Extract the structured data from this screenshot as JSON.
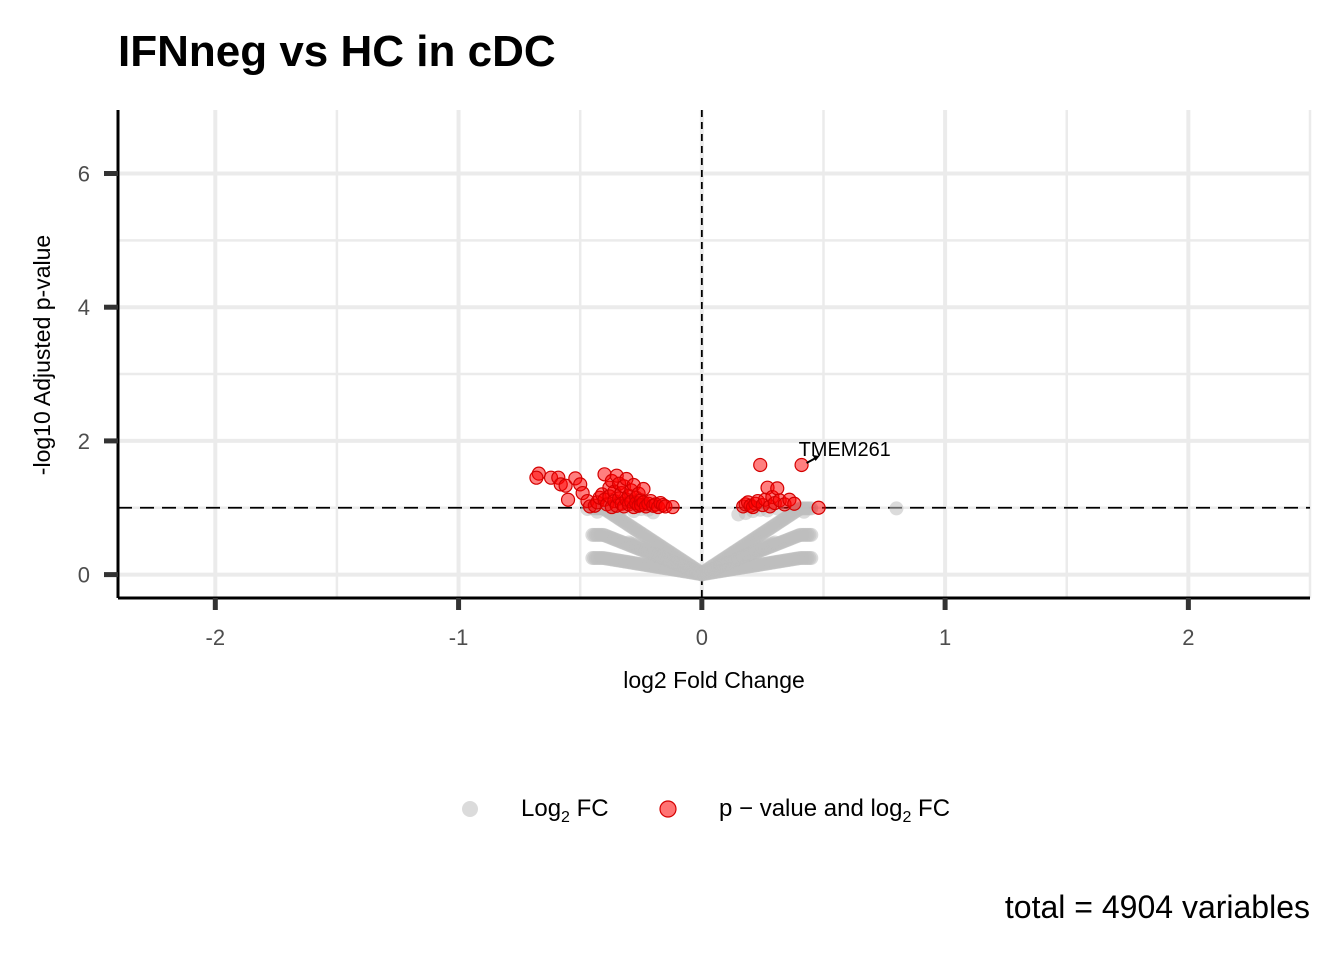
{
  "chart_data": {
    "type": "scatter",
    "title": "IFNneg vs HC in cDC",
    "xlabel": "log2 Fold Change",
    "ylabel": "-log10 Adjusted p-value",
    "xlim": [
      -2.4,
      2.5
    ],
    "ylim": [
      -0.35,
      6.95
    ],
    "x_ticks": [
      -2,
      -1,
      0,
      1,
      2
    ],
    "x_tick_labels": [
      "-2",
      "-1",
      "0",
      "1",
      "2"
    ],
    "y_ticks": [
      0,
      2,
      4,
      6
    ],
    "y_tick_labels": [
      "0",
      "2",
      "4",
      "6"
    ],
    "grid": true,
    "thresholds": {
      "log2fc": 0,
      "neg_log10_padj": 1
    },
    "legend": {
      "position": "bottom",
      "items": [
        {
          "label_main": "Log",
          "label_sub": "2",
          "label_tail": " FC",
          "color": "#bdbdbd"
        },
        {
          "label_main": "p − value and log",
          "label_sub": "2",
          "label_tail": " FC",
          "color": "#ff0000"
        }
      ]
    },
    "caption": "total = 4904 variables",
    "annotations": [
      {
        "text": "TMEM261",
        "x": 0.41,
        "y": 1.64
      }
    ],
    "series": [
      {
        "name": "p − value and log2 FC",
        "color": "#ff0000",
        "points": [
          [
            -0.67,
            1.51
          ],
          [
            -0.68,
            1.45
          ],
          [
            -0.62,
            1.45
          ],
          [
            -0.59,
            1.45
          ],
          [
            -0.58,
            1.35
          ],
          [
            -0.56,
            1.33
          ],
          [
            -0.55,
            1.12
          ],
          [
            -0.52,
            1.44
          ],
          [
            -0.5,
            1.35
          ],
          [
            -0.49,
            1.22
          ],
          [
            -0.47,
            1.1
          ],
          [
            -0.46,
            1.02
          ],
          [
            -0.44,
            1.03
          ],
          [
            -0.43,
            1.08
          ],
          [
            -0.42,
            1.15
          ],
          [
            -0.41,
            1.2
          ],
          [
            -0.4,
            1.5
          ],
          [
            -0.4,
            1.12
          ],
          [
            -0.39,
            1.05
          ],
          [
            -0.38,
            1.3
          ],
          [
            -0.38,
            1.17
          ],
          [
            -0.37,
            1.4
          ],
          [
            -0.37,
            1.01
          ],
          [
            -0.36,
            1.24
          ],
          [
            -0.36,
            1.1
          ],
          [
            -0.35,
            1.48
          ],
          [
            -0.35,
            1.03
          ],
          [
            -0.34,
            1.36
          ],
          [
            -0.34,
            1.14
          ],
          [
            -0.33,
            1.22
          ],
          [
            -0.33,
            1.06
          ],
          [
            -0.32,
            1.32
          ],
          [
            -0.32,
            1.02
          ],
          [
            -0.31,
            1.43
          ],
          [
            -0.31,
            1.12
          ],
          [
            -0.3,
            1.18
          ],
          [
            -0.3,
            1.05
          ],
          [
            -0.29,
            1.26
          ],
          [
            -0.29,
            1.09
          ],
          [
            -0.28,
            1.34
          ],
          [
            -0.28,
            1.01
          ],
          [
            -0.27,
            1.15
          ],
          [
            -0.27,
            1.07
          ],
          [
            -0.26,
            1.21
          ],
          [
            -0.26,
            1.03
          ],
          [
            -0.25,
            1.11
          ],
          [
            -0.25,
            1.04
          ],
          [
            -0.24,
            1.28
          ],
          [
            -0.24,
            1.08
          ],
          [
            -0.23,
            1.02
          ],
          [
            -0.22,
            1.06
          ],
          [
            -0.21,
            1.1
          ],
          [
            -0.2,
            1.03
          ],
          [
            -0.19,
            1.05
          ],
          [
            -0.18,
            1.01
          ],
          [
            -0.17,
            1.07
          ],
          [
            -0.16,
            1.04
          ],
          [
            -0.15,
            1.02
          ],
          [
            -0.12,
            1.01
          ],
          [
            0.17,
            1.02
          ],
          [
            0.18,
            1.05
          ],
          [
            0.19,
            1.08
          ],
          [
            0.2,
            1.03
          ],
          [
            0.21,
            1.01
          ],
          [
            0.22,
            1.06
          ],
          [
            0.23,
            1.1
          ],
          [
            0.24,
            1.64
          ],
          [
            0.25,
            1.04
          ],
          [
            0.26,
            1.12
          ],
          [
            0.27,
            1.3
          ],
          [
            0.28,
            1.02
          ],
          [
            0.29,
            1.16
          ],
          [
            0.3,
            1.07
          ],
          [
            0.31,
            1.29
          ],
          [
            0.32,
            1.11
          ],
          [
            0.34,
            1.05
          ],
          [
            0.36,
            1.12
          ],
          [
            0.38,
            1.06
          ],
          [
            0.41,
            1.64
          ],
          [
            0.48,
            1.0
          ]
        ]
      },
      {
        "name": "Log2 FC",
        "color": "#bdbdbd",
        "points": [
          [
            0.8,
            0.99
          ],
          [
            0.42,
            0.94
          ],
          [
            -0.47,
            0.98
          ],
          [
            -0.43,
            0.94
          ],
          [
            0.27,
            0.96
          ],
          [
            0.31,
            0.99
          ],
          [
            -0.38,
            0.96
          ],
          [
            -0.33,
            0.97
          ],
          [
            -0.28,
            0.95
          ],
          [
            -0.25,
            0.98
          ],
          [
            -0.22,
            0.97
          ],
          [
            -0.2,
            0.93
          ],
          [
            0.21,
            0.95
          ],
          [
            0.24,
            0.97
          ],
          [
            0.18,
            0.92
          ],
          [
            0.15,
            0.9
          ]
        ]
      }
    ]
  }
}
